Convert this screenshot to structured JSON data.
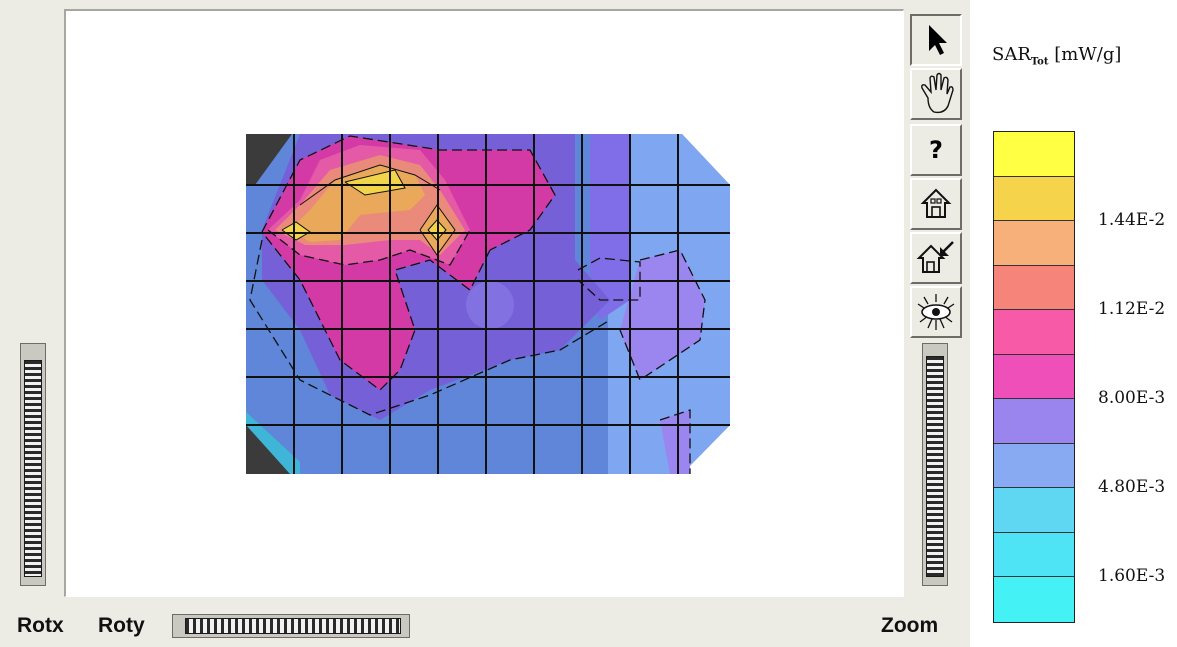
{
  "legend": {
    "title_main": "SAR",
    "title_sub": "Tot",
    "title_unit": " [mW/g]",
    "colors": [
      "#ffff44",
      "#f5d34a",
      "#f7b07a",
      "#f7847a",
      "#f75aa6",
      "#ee4fb8",
      "#9a84ee",
      "#88aaf2",
      "#5fd6f2",
      "#4ee4f6",
      "#44f2f6"
    ],
    "labels": [
      {
        "text": "1.44E-2",
        "band": 2
      },
      {
        "text": "1.12E-2",
        "band": 4
      },
      {
        "text": "8.00E-3",
        "band": 6
      },
      {
        "text": "4.80E-3",
        "band": 8
      },
      {
        "text": "1.60E-3",
        "band": 10
      }
    ]
  },
  "controls": {
    "rotx_label": "Rotx",
    "roty_label": "Roty",
    "zoom_label": "Zoom"
  },
  "tools": [
    {
      "name": "pointer-tool-button",
      "icon": "arrow-pointer-icon",
      "glyph": "➤"
    },
    {
      "name": "pan-tool-button",
      "icon": "hand-icon",
      "glyph": "✋"
    },
    {
      "name": "help-tool-button",
      "icon": "question-icon",
      "glyph": "?"
    },
    {
      "name": "home-tool-button",
      "icon": "home-icon",
      "glyph": "⌂"
    },
    {
      "name": "home-zoom-tool-button",
      "icon": "home-arrow-icon",
      "glyph": "⌂"
    },
    {
      "name": "view-tool-button",
      "icon": "eye-icon",
      "glyph": "◉"
    }
  ]
}
